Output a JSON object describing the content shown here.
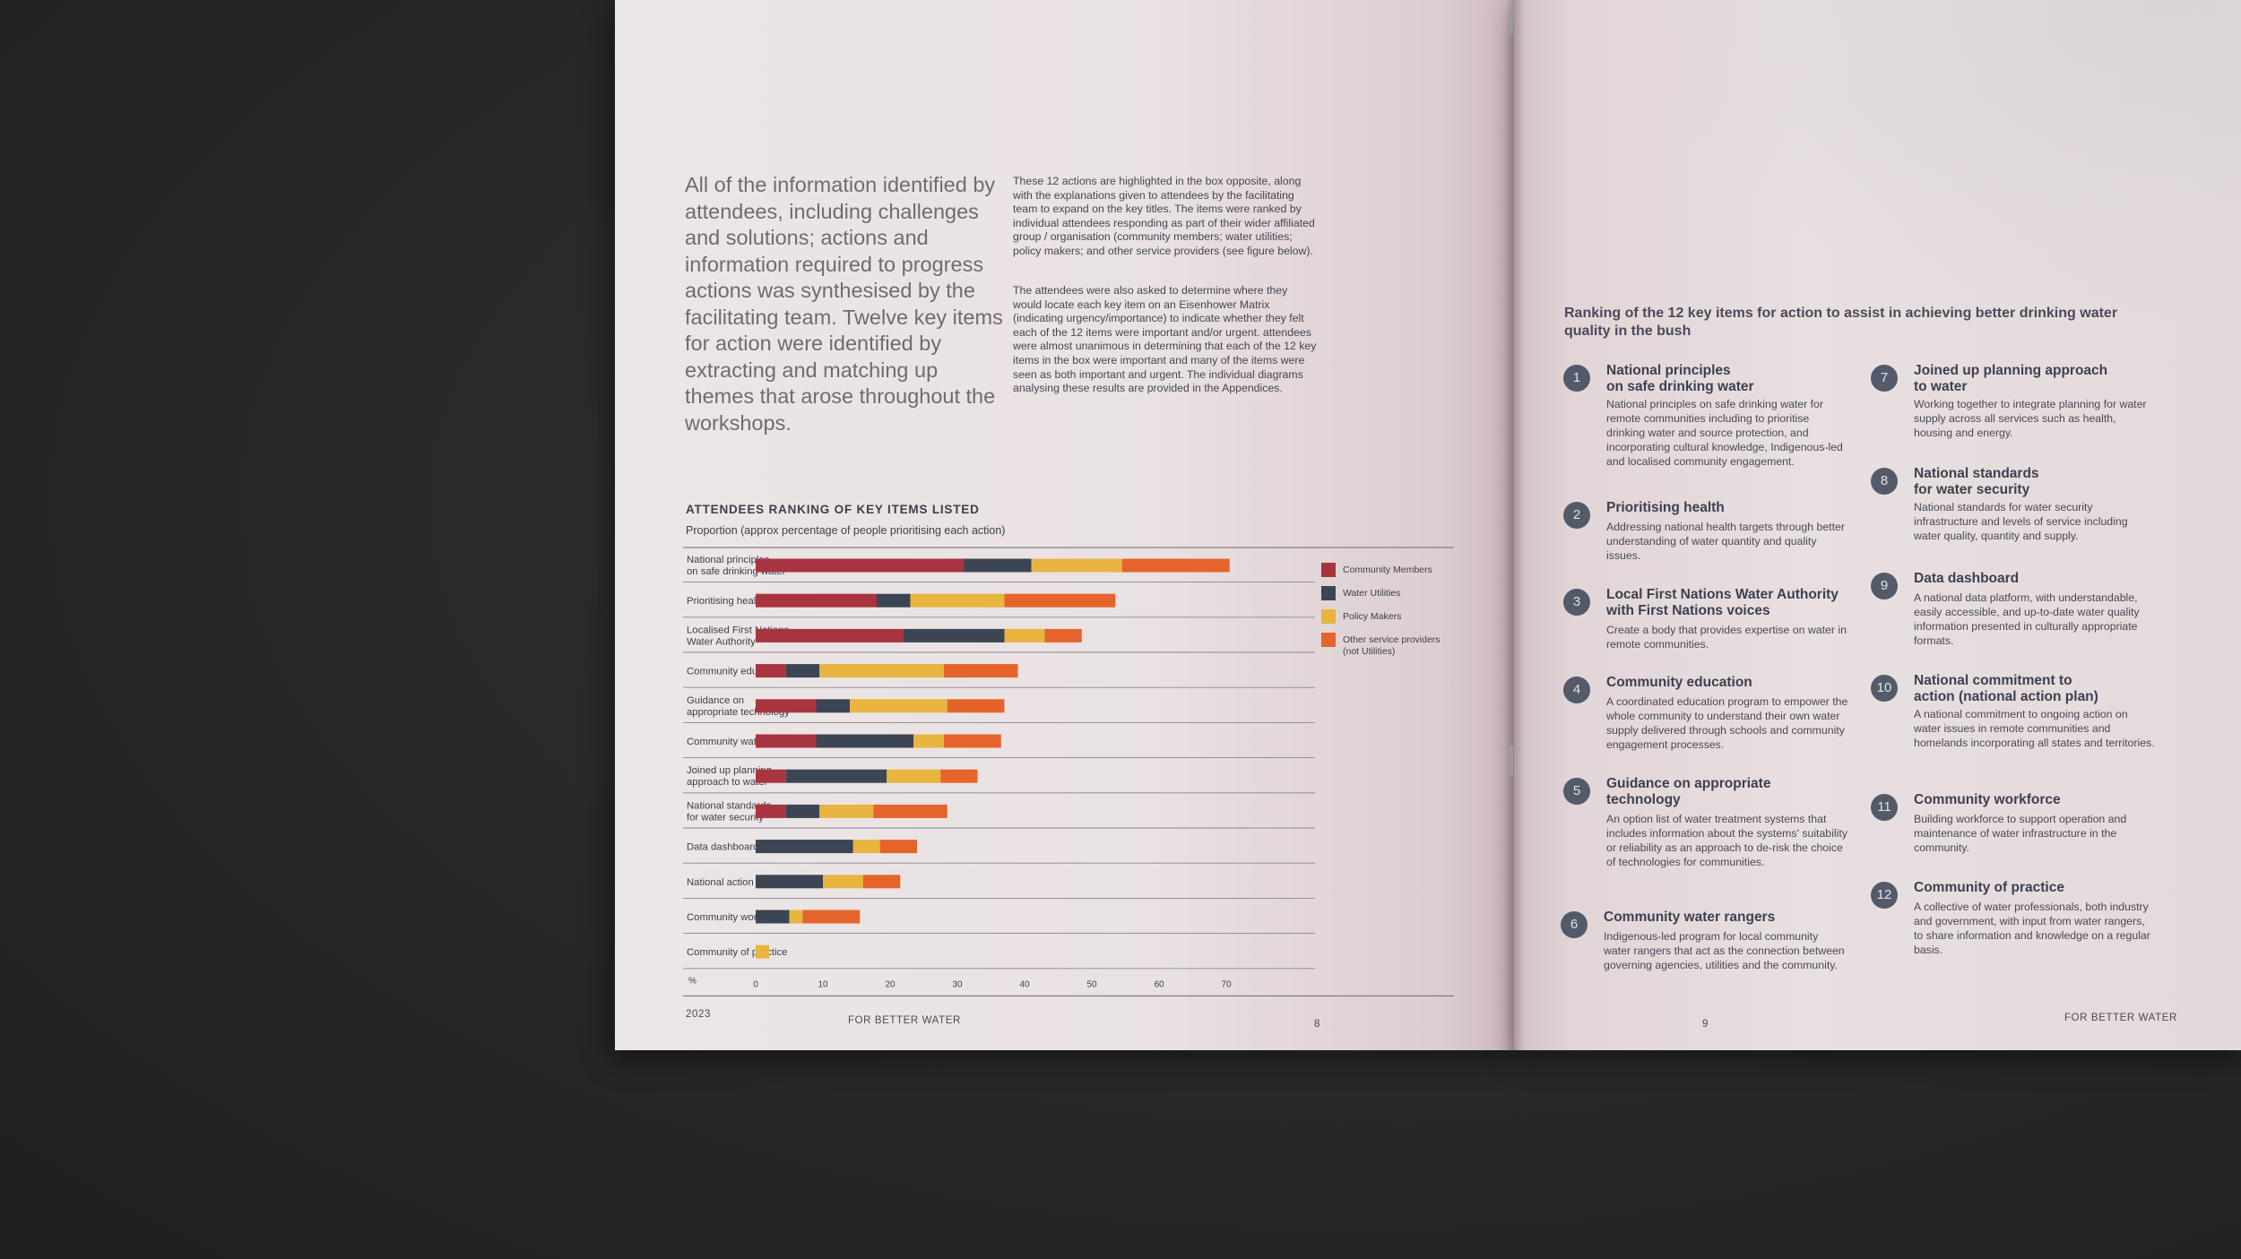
{
  "left_page": {
    "intro_large": "All of the information identified by attendees, including challenges and solutions; actions and information required to progress actions was synthesised by the facilitating team. Twelve key items for action were identified by extracting and matching up themes that arose throughout the workshops.",
    "para1": "These 12 actions are highlighted in the box opposite, along with the explanations given to attendees by the facilitating team to expand on the key titles. The items were ranked by individual attendees responding as part of their wider affiliated group / organisation (community members; water utilities; policy makers; and other service providers (see figure below).",
    "para2": "The attendees were also asked to determine where they would locate each key item on an Eisenhower Matrix (indicating urgency/importance) to indicate whether they felt each of the 12 items were important and/or urgent. attendees were almost unanimous in determining that each of the 12 key items in the box were important and many of the items were seen as both important and urgent. The individual diagrams analysing these results are provided in the Appendices.",
    "footer_year": "2023",
    "footer_brand": "FOR BETTER WATER",
    "page_number": "8"
  },
  "chart_data": {
    "type": "bar",
    "orientation": "horizontal",
    "stacked": true,
    "title": "ATTENDEES RANKING OF KEY ITEMS LISTED",
    "subtitle": "Proportion (approx percentage of people prioritising each action)",
    "xlabel": "%",
    "xlim": [
      0,
      70
    ],
    "xticks": [
      0,
      10,
      20,
      30,
      40,
      50,
      60,
      70
    ],
    "categories": [
      "National principles|on safe drinking water",
      "Prioritising health",
      "Localised First Nations|Water Authority",
      "Community education",
      "Guidance on|appropriate technology",
      "Community water rangers",
      "Joined up planning|approach to water",
      "National standards|for water security",
      "Data dashboard",
      "National action plan",
      "Community workforce",
      "Community of practice"
    ],
    "series": [
      {
        "name": "Community Members",
        "color": "#a8343f",
        "values": [
          31,
          18,
          22,
          4.5,
          9,
          9,
          4.5,
          4.5,
          0,
          0,
          0,
          0
        ]
      },
      {
        "name": "Water Utilities",
        "color": "#3c4554",
        "values": [
          10,
          5,
          15,
          5,
          5,
          14.5,
          15,
          5,
          14.5,
          10,
          5,
          0
        ]
      },
      {
        "name": "Policy Makers",
        "color": "#e7b540",
        "values": [
          13.5,
          14,
          6,
          18.5,
          14.5,
          4.5,
          8,
          8,
          4,
          6,
          2,
          2
        ]
      },
      {
        "name": "Other service providers|(not Utilities)",
        "color": "#e4642b",
        "values": [
          16,
          16.5,
          5.5,
          11,
          8.5,
          8.5,
          5.5,
          11,
          5.5,
          5.5,
          8.5,
          0
        ]
      }
    ],
    "legend": "right",
    "grid": false
  },
  "right_page": {
    "title": "Ranking of the 12 key items for action to assist in achieving better drinking water quality in the bush",
    "items": [
      {
        "num": "1",
        "title": "National principles|on safe drinking water",
        "desc": "National principles on safe drinking water for remote communities including to prioritise drinking water and source protection, and incorporating cultural knowledge, Indigenous-led and localised community engagement."
      },
      {
        "num": "2",
        "title": "Prioritising health",
        "desc": "Addressing national health targets through better understanding of water quantity and quality issues."
      },
      {
        "num": "3",
        "title": "Local First Nations Water Authority|with First Nations voices",
        "desc": "Create a body that provides expertise on water in remote communities."
      },
      {
        "num": "4",
        "title": "Community education",
        "desc": "A coordinated education program to empower the whole community to understand their own water supply delivered through schools and community engagement processes."
      },
      {
        "num": "5",
        "title": "Guidance on appropriate|technology",
        "desc": "An option list of water treatment systems that includes information about the systems' suitability or reliability as an approach to de-risk the choice of technologies for communities."
      },
      {
        "num": "6",
        "title": "Community water rangers",
        "desc": "Indigenous-led program for local community water rangers that act as the connection between governing agencies, utilities and the community."
      },
      {
        "num": "7",
        "title": "Joined up planning approach|to water",
        "desc": "Working together to integrate planning for water supply across all services such as health, housing and energy."
      },
      {
        "num": "8",
        "title": "National standards|for water security",
        "desc": "National standards for water security infrastructure and levels of service including water quality, quantity and supply."
      },
      {
        "num": "9",
        "title": "Data dashboard",
        "desc": "A national data platform, with understandable, easily accessible, and up-to-date water quality information presented in culturally appropriate formats."
      },
      {
        "num": "10",
        "title": "National commitment to|action (national action plan)",
        "desc": "A national commitment to ongoing action on water issues in remote communities and homelands incorporating all states and territories."
      },
      {
        "num": "11",
        "title": "Community workforce",
        "desc": "Building workforce to support operation and maintenance of water infrastructure in the community."
      },
      {
        "num": "12",
        "title": "Community of practice",
        "desc": "A collective of water professionals, both industry and government, with input from water rangers, to share information and knowledge on a regular basis."
      }
    ],
    "page_number": "9",
    "footer_brand": "FOR BETTER WATER"
  }
}
